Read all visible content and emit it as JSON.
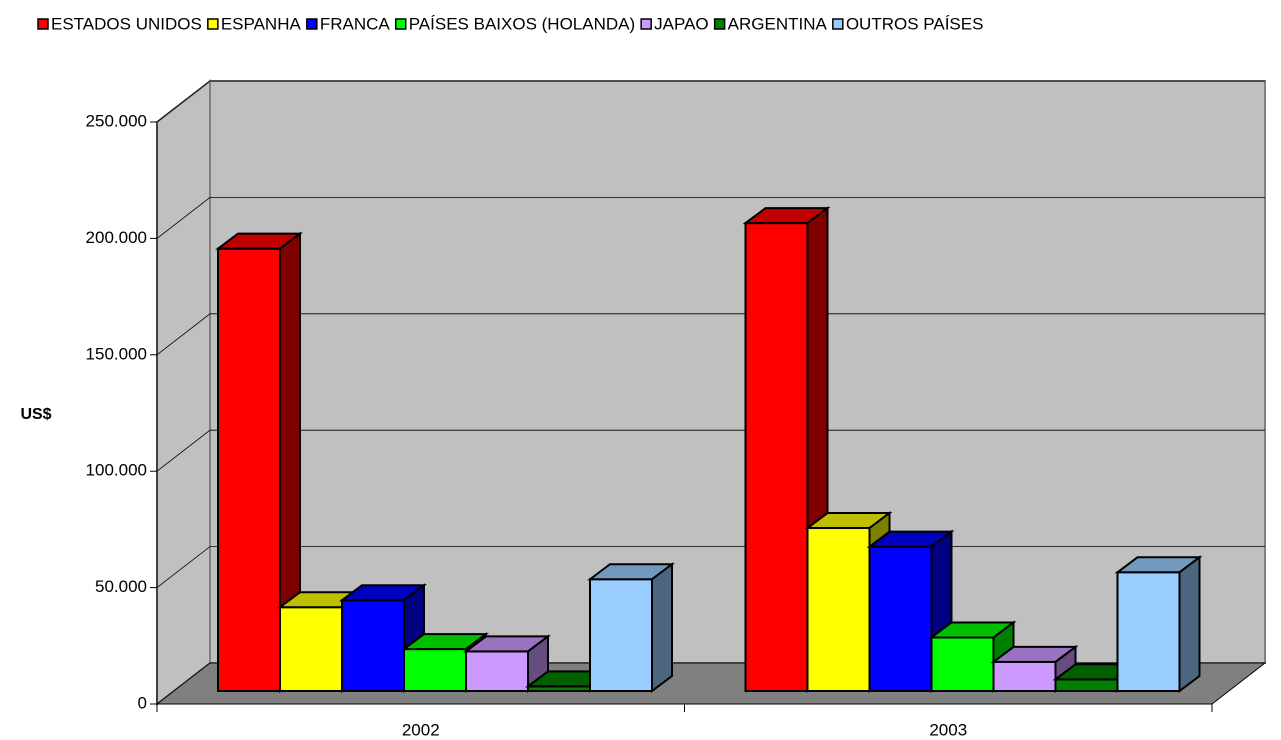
{
  "chart_data": {
    "type": "bar3d",
    "y_label": "US$",
    "categories": [
      "2002",
      "2003"
    ],
    "series": [
      {
        "name": "ESTADOS UNIDOS",
        "color": "#ff0000",
        "values": [
          190000,
          201000
        ]
      },
      {
        "name": "ESPANHA",
        "color": "#ffff00",
        "values": [
          36000,
          70000
        ]
      },
      {
        "name": "FRANCA",
        "color": "#0000ff",
        "values": [
          39000,
          62000
        ]
      },
      {
        "name": "PAÍSES BAIXOS (HOLANDA)",
        "color": "#00ff00",
        "values": [
          18000,
          23000
        ]
      },
      {
        "name": "JAPAO",
        "color": "#cc99ff",
        "values": [
          17000,
          12500
        ]
      },
      {
        "name": "ARGENTINA",
        "color": "#008000",
        "values": [
          2000,
          5000
        ]
      },
      {
        "name": "OUTROS PAÍSES",
        "color": "#99ccff",
        "values": [
          48000,
          51000
        ]
      }
    ],
    "ylim": [
      0,
      250000
    ],
    "yticks": [
      0,
      {
        "value": 50000,
        "label": "50.000"
      },
      {
        "value": 100000,
        "label": "100.000"
      },
      {
        "value": 150000,
        "label": "150.000"
      },
      {
        "value": 200000,
        "label": "200.000"
      },
      {
        "value": 250000,
        "label": "250.000"
      }
    ],
    "grid": true,
    "legend": "top"
  }
}
